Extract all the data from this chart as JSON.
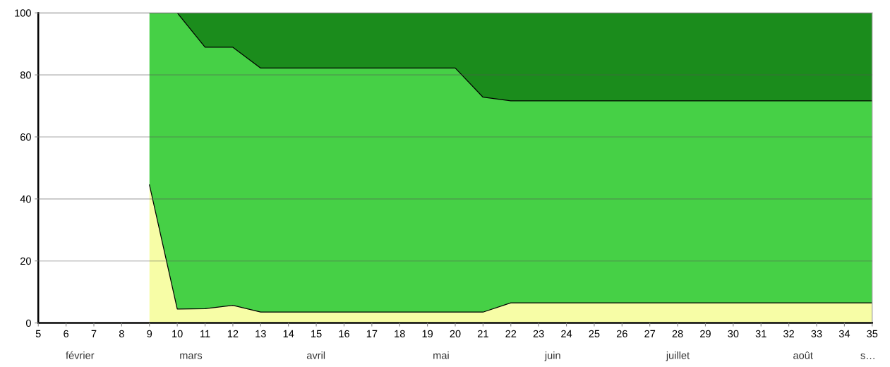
{
  "chart_data": {
    "type": "area",
    "stacked": true,
    "x": [
      9,
      10,
      11,
      12,
      13,
      14,
      15,
      16,
      17,
      18,
      19,
      20,
      21,
      22,
      23,
      24,
      25,
      26,
      27,
      28,
      29,
      30,
      31,
      32,
      33,
      34,
      35
    ],
    "series": [
      {
        "color": "#f7fda6",
        "values": [
          44.5,
          4.5,
          4.6,
          5.7,
          3.5,
          3.5,
          3.5,
          3.5,
          3.5,
          3.5,
          3.5,
          3.5,
          3.5,
          6.5,
          6.5,
          6.5,
          6.5,
          6.5,
          6.5,
          6.5,
          6.5,
          6.5,
          6.5,
          6.5,
          6.5,
          6.5,
          6.5
        ]
      },
      {
        "color": "#46d046",
        "values": [
          55.5,
          95.5,
          84.3,
          83.2,
          78.7,
          78.7,
          78.7,
          78.7,
          78.7,
          78.7,
          78.7,
          78.7,
          69.3,
          65.1,
          65.1,
          65.1,
          65.1,
          65.1,
          65.1,
          65.1,
          65.1,
          65.1,
          65.1,
          65.1,
          65.1,
          65.1,
          65.1
        ]
      },
      {
        "color": "#1b8c1c",
        "values": [
          0,
          0,
          11.1,
          11.1,
          17.8,
          17.8,
          17.8,
          17.8,
          17.8,
          17.8,
          17.8,
          17.8,
          27.2,
          28.4,
          28.4,
          28.4,
          28.4,
          28.4,
          28.4,
          28.4,
          28.4,
          28.4,
          28.4,
          28.4,
          28.4,
          28.4,
          28.4
        ]
      }
    ],
    "xlim": [
      5,
      35
    ],
    "xticks": [
      5,
      6,
      7,
      8,
      9,
      10,
      11,
      12,
      13,
      14,
      15,
      16,
      17,
      18,
      19,
      20,
      21,
      22,
      23,
      24,
      25,
      26,
      27,
      28,
      29,
      30,
      31,
      32,
      33,
      34,
      35
    ],
    "ylim": [
      0,
      100
    ],
    "yticks": [
      0,
      20,
      40,
      60,
      80,
      100
    ],
    "grid": "y",
    "legend": false,
    "annotations": [
      "février",
      "mars",
      "avril",
      "mai",
      "juin",
      "juillet",
      "août",
      "s…"
    ]
  }
}
